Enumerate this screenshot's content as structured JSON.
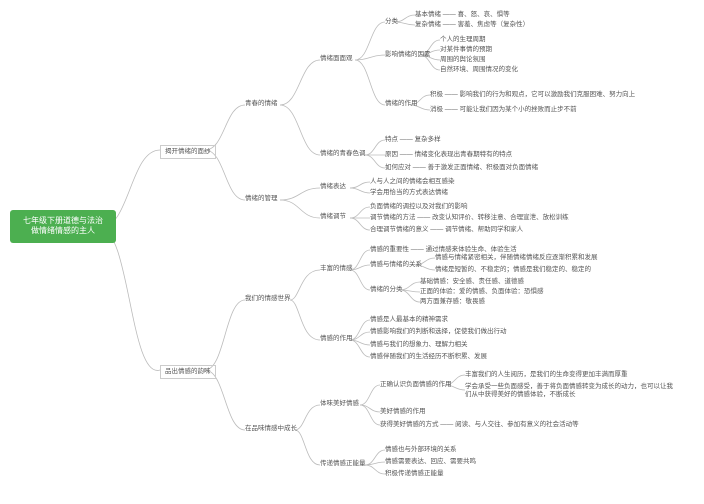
{
  "root": "七年级下册道德与法治\n做情绪情感的主人",
  "branches": {
    "b1": "揭开情绪的面纱",
    "b2": "品出情感的韵味",
    "b1_1": "青春的情绪",
    "b1_2": "情绪的管理",
    "b2_1": "我们的情感世界",
    "b2_2": "在品味情感中成长",
    "b1_1_1": "情绪面面观",
    "b1_1_2": "情绪的青春色调",
    "b1_2_1": "情绪表达",
    "b1_2_2": "情绪调节",
    "b2_1_1": "丰富的情感",
    "b2_1_2": "情感的作用",
    "b2_2_1": "体味美好情感",
    "b2_2_2": "传递情感正能量",
    "n1": "分类",
    "n1a": "基本情绪 —— 喜、怒、哀、惧等",
    "n1b": "复杂情绪 —— 害羞、焦虑等（复杂性）",
    "n2": "影响情绪的因素",
    "n2a": "个人的生理周期",
    "n2b": "对某件事情的预期",
    "n2c": "周围的舆论氛围",
    "n2d": "自然环境、周围情况的变化",
    "n3": "情绪的作用",
    "n3a": "积极 —— 影响我们的行为和观点，它可以激励我们克服困难、努力向上",
    "n3b": "消极 —— 可能让我们因为某个小的挫败而止步不前",
    "n4": "特点 —— 复杂多样",
    "n5": "原因 —— 情绪变化表现出青春期特有的特点",
    "n6": "如何应对 —— 善于激发正面情绪、积极面对负面情绪",
    "n7": "人与人之间的情绪会相互感染",
    "n8": "学会用恰当的方式表达情绪",
    "n9": "负面情绪的调控以及对我们的影响",
    "n10": "调节情绪的方法 —— 改变认知评价、转移注意、合理宣泄、放松训练",
    "n11": "合理调节情绪的意义 —— 调节情绪、帮助同学和家人",
    "n12": "情感的重要性 —— 通过情感来体验生命、体验生活",
    "n13": "情感与情绪的关系",
    "n13a": "情感与情绪紧密相关，伴随情绪情绪反应逐渐积累和发展",
    "n13b": "情绪是短暂的、不稳定的；情感是我们稳定的、稳定的",
    "n14": "情绪的分类",
    "n14a": "基础情感：安全感、责任感、道德感",
    "n14b": "正面的体验：爱的情感、负面体验：恐惧感",
    "n14c": "两方面兼存感：敬畏感",
    "n15": "情感是人最基本的精神需求",
    "n16": "情感影响我们的判断和选择，促使我们做出行动",
    "n17": "情感与我们的想象力、理解力相关",
    "n18": "情感伴随我们的生活经历不断积累、发展",
    "n19": "正确认识负面情感的作用",
    "n19a": "丰富我们的人生阅历，是我们的生命变得更加丰满而厚重",
    "n19b": "学会承受一些负面感受，善于将负面情感转变为成长的动力，也可以让我们从中获得美好的情感体验，不断成长",
    "n20": "美好情感的作用",
    "n21": "获得美好情感的方式 —— 阅读、与人交往、参加有意义的社会活动等",
    "n22": "情感也与外部环境的关系",
    "n23": "情感需要表达、回应、需要共鸣",
    "n24": "积极传递情感正能量"
  },
  "colors": {
    "root_bg": "#4CAF50",
    "root_text": "#ffffff",
    "line": "#bbbbbb",
    "text": "#555555"
  }
}
